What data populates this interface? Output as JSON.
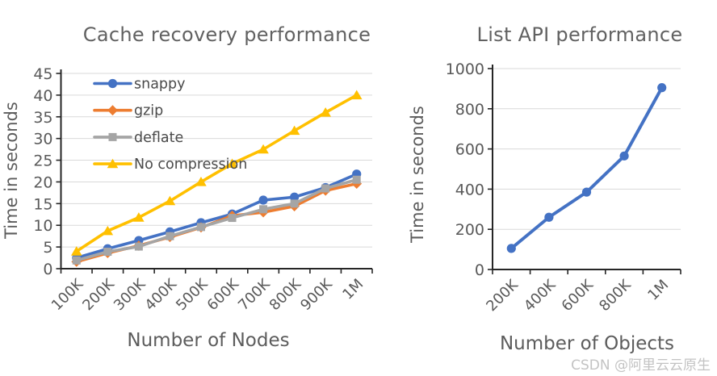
{
  "watermark": {
    "text": "CSDN @阿里云云原生"
  },
  "styles": {
    "axis_color": "#262626",
    "grid_color": "#d9d9d9",
    "tick_label_color": "#595959",
    "title_color": "#616161",
    "legend_label_color": "#4a4a4a",
    "watermark_color": "#c3c3c3",
    "accent_blue": "#4472C4",
    "accent_orange": "#ED7D31",
    "accent_gray": "#A5A5A5",
    "accent_yellow": "#FFC000"
  },
  "chart_data": [
    {
      "type": "line",
      "title": "Cache recovery performance",
      "xlabel": "Number of Nodes",
      "ylabel": "Time in seconds",
      "categories": [
        "100K",
        "200K",
        "300K",
        "400K",
        "500K",
        "600K",
        "700K",
        "800K",
        "900K",
        "1M"
      ],
      "ylim": [
        0,
        45
      ],
      "ytick_step": 5,
      "grid": true,
      "legend_position": "inside-top-left",
      "series": [
        {
          "name": "snappy",
          "color": "#4472C4",
          "marker": "circle",
          "values": [
            2.5,
            4.6,
            6.5,
            8.5,
            10.6,
            12.6,
            15.8,
            16.5,
            18.7,
            21.8
          ]
        },
        {
          "name": "gzip",
          "color": "#ED7D31",
          "marker": "diamond",
          "values": [
            1.6,
            3.6,
            5.3,
            7.3,
            9.5,
            12.2,
            13.0,
            14.4,
            18.0,
            19.6
          ]
        },
        {
          "name": "deflate",
          "color": "#A5A5A5",
          "marker": "square",
          "values": [
            1.9,
            3.9,
            5.1,
            7.5,
            9.6,
            11.7,
            13.7,
            15.0,
            18.5,
            20.5
          ]
        },
        {
          "name": "No compression",
          "color": "#FFC000",
          "marker": "triangle",
          "values": [
            4.0,
            8.7,
            11.8,
            15.6,
            20.0,
            24.2,
            27.5,
            31.8,
            36.0,
            40.0
          ]
        }
      ]
    },
    {
      "type": "line",
      "title": "List API performance",
      "xlabel": "Number of Objects",
      "ylabel": "Time in seconds",
      "categories": [
        "200K",
        "400K",
        "600K",
        "800K",
        "1M"
      ],
      "ylim": [
        0,
        1000
      ],
      "ytick_step": 200,
      "grid": true,
      "legend_position": "none",
      "series": [
        {
          "name": "List API",
          "color": "#4472C4",
          "marker": "circle",
          "values": [
            105,
            260,
            385,
            565,
            905
          ]
        }
      ]
    }
  ]
}
